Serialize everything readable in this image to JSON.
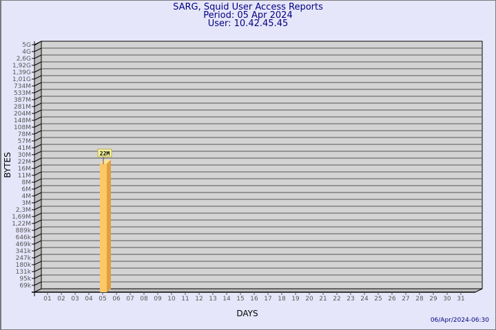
{
  "header": {
    "title": "SARG, Squid User Access Reports",
    "period": "Period: 05 Apr 2024",
    "user": "User: 10.42.45.45"
  },
  "footer": {
    "timestamp": "06/Apr/2024-06:30"
  },
  "colors": {
    "background": "#e6e6fa",
    "plot": "#d3d3d3",
    "bar_front": "#ffc866",
    "bar_side": "#e0a040",
    "title": "#000080"
  },
  "chart_data": {
    "type": "bar",
    "title": "SARG, Squid User Access Reports",
    "xlabel": "DAYS",
    "ylabel": "BYTES",
    "grid": true,
    "y_scale": "log",
    "y_ticks": [
      "5G",
      "4G",
      "2,6G",
      "1,92G",
      "1,39G",
      "1,01G",
      "734M",
      "533M",
      "387M",
      "281M",
      "204M",
      "148M",
      "108M",
      "78M",
      "57M",
      "41M",
      "30M",
      "22M",
      "16M",
      "11M",
      "8M",
      "6M",
      "4M",
      "3M",
      "2,3M",
      "1,69M",
      "1,22M",
      "889k",
      "646k",
      "469k",
      "341k",
      "247k",
      "180k",
      "131k",
      "95k",
      "69k"
    ],
    "categories": [
      "01",
      "02",
      "03",
      "04",
      "05",
      "06",
      "07",
      "08",
      "09",
      "10",
      "11",
      "12",
      "13",
      "14",
      "15",
      "16",
      "17",
      "18",
      "19",
      "20",
      "21",
      "22",
      "23",
      "24",
      "25",
      "26",
      "27",
      "28",
      "29",
      "30",
      "31"
    ],
    "values": [
      0,
      0,
      0,
      0,
      22000000,
      0,
      0,
      0,
      0,
      0,
      0,
      0,
      0,
      0,
      0,
      0,
      0,
      0,
      0,
      0,
      0,
      0,
      0,
      0,
      0,
      0,
      0,
      0,
      0,
      0,
      0
    ],
    "data_labels": {
      "05": "22M"
    }
  }
}
